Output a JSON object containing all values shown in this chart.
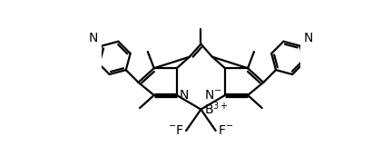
{
  "bg_color": "#ffffff",
  "line_color": "#000000",
  "line_width": 1.6,
  "bold_lw": 3.8,
  "font_size": 10,
  "xlim": [
    -3.5,
    3.5
  ],
  "ylim": [
    -1.9,
    2.6
  ]
}
